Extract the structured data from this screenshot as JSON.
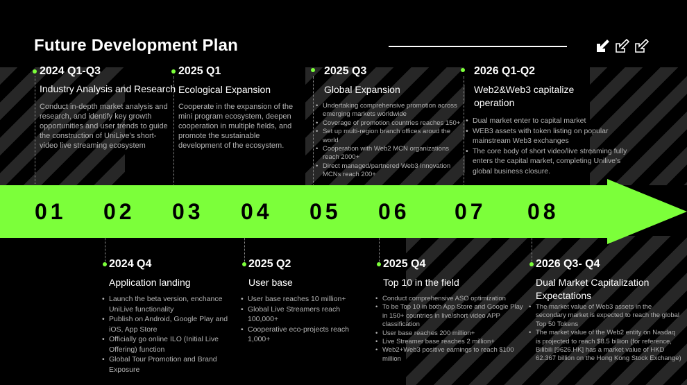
{
  "title": "Future Development Plan",
  "icons": [
    "arrow-down-left-icon",
    "arrow-down-left-outline-icon",
    "arrow-down-left-outline-icon"
  ],
  "numbers": [
    "01",
    "02",
    "03",
    "04",
    "05",
    "06",
    "07",
    "08"
  ],
  "colors": {
    "accent": "#7cff3a",
    "background": "#000000",
    "muted_text": "#b4b4b4"
  },
  "milestones": [
    {
      "period": "2024 Q1-Q3",
      "title": "Industry Analysis and Research",
      "description": "Conduct in-depth market analysis and research, and identify key growth opportunities and user trends to guide the construction of UniLive's short-video live streaming ecosystem"
    },
    {
      "period": "2024 Q4",
      "title": "Application landing",
      "items": [
        "Launch the beta version, enchance UniLive functionality",
        "Publish on Android, Google Play and iOS, App Store",
        "Officially go online ILO (Initial Live Offering) function",
        "Global Tour Promotion and Brand Exposure"
      ]
    },
    {
      "period": "2025 Q1",
      "title": "Ecological Expansion",
      "description": "Cooperate in the expansion of the mini program ecosystem, deepen cooperation in multiple fields, and promote the sustainable development of the ecosystem."
    },
    {
      "period": "2025 Q2",
      "title": "User base",
      "items": [
        "User base reaches 10 million+",
        "Global Live Streamers reach 100,000+",
        "Cooperative eco-projects reach 1,000+"
      ]
    },
    {
      "period": "2025 Q3",
      "title": "Global Expansion",
      "items": [
        "Undertaking comprehensive promotion across emerging markets worldwide",
        "Coverage of promotion countries reaches 150+",
        "Set up multi-region branch offices aroud the world",
        "Cooperation with Web2 MCN organizations reach 2000+",
        "Direct managed/partnered Web3 Innovation MCNs reach 200+"
      ]
    },
    {
      "period": "2025 Q4",
      "title": "Top 10 in the field",
      "items": [
        "Conduct comprehensive ASO optimization",
        "To be Top 10 in both App Store and Google Play in 150+ countries in live/short video APP classification",
        "User base reaches 200 million+",
        "Live Streamer base reaches 2 million+",
        "Web2+Web3 positive earnings to reach $100 million"
      ]
    },
    {
      "period": "2026 Q1-Q2",
      "title": "Web2&Web3 capitalize operation",
      "items": [
        "Dual market enter to capital market",
        "WEB3 assets with token listing on popular mainstream Web3 exchanges",
        "The core body of short video/live streaming fully enters the capital market, completing Unilive's global business closure."
      ]
    },
    {
      "period": "2026 Q3- Q4",
      "title": "Dual Market Capitalization Expectations",
      "items": [
        "The market value of Web3 assets in the secondary market is expected to reach the global Top 50 Tokens",
        "The market value of the Web2 entity on Nasdaq is projected to reach $8.5 billion (for reference, Bilibili [9626.HK] has a market value of HKD 62.367 billion on the Hong Kong Stock Exchange)"
      ]
    }
  ]
}
